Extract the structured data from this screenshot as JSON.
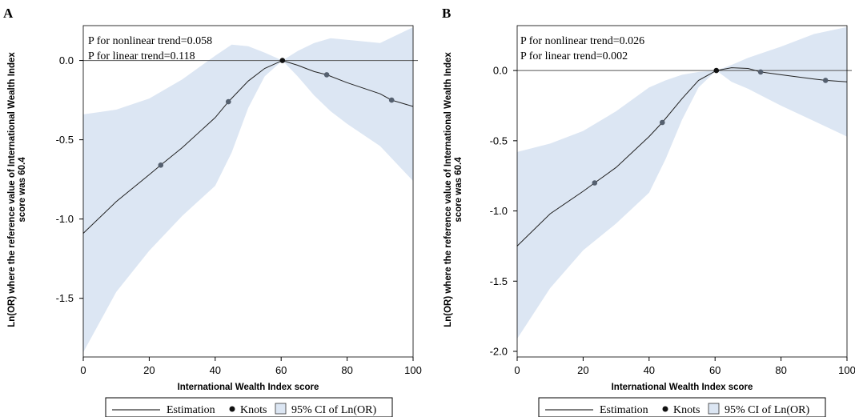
{
  "chart_data": [
    {
      "type": "line",
      "panel_label": "A",
      "xlabel": "International Wealth Index score",
      "ylabel_lines": [
        "Ln(OR) where the reference value of International Wealth Index",
        "score was 60.4"
      ],
      "xlim": [
        0,
        100
      ],
      "ylim": [
        -1.87,
        0.22
      ],
      "xticks": [
        0,
        20,
        40,
        60,
        80,
        100
      ],
      "xtick_labels": [
        "0",
        "20",
        "40",
        "60",
        "80",
        "100"
      ],
      "yticks": [
        0.0,
        -0.5,
        -1.0,
        -1.5
      ],
      "ytick_labels": [
        "0.0",
        "-0.5",
        "-1.0",
        "-1.5"
      ],
      "reference_line_y": 0,
      "annotations": [
        "P for nonlinear trend=0.058",
        "P for linear trend=0.118"
      ],
      "series": [
        {
          "name": "Estimation",
          "x": [
            0,
            10,
            20,
            23.5,
            30,
            40,
            44,
            50,
            55,
            60.4,
            65,
            70,
            73.8,
            80,
            90,
            93.5,
            100
          ],
          "values": [
            -1.09,
            -0.89,
            -0.72,
            -0.66,
            -0.55,
            -0.36,
            -0.26,
            -0.13,
            -0.05,
            0.0,
            -0.03,
            -0.07,
            -0.09,
            -0.14,
            -0.21,
            -0.25,
            -0.29
          ]
        },
        {
          "name": "Knots",
          "x": [
            23.5,
            44,
            60.4,
            73.8,
            93.5
          ],
          "values": [
            -0.66,
            -0.26,
            0.0,
            -0.09,
            -0.25
          ]
        },
        {
          "name": "95% CI of Ln(OR)",
          "x": [
            0,
            10,
            20,
            30,
            40,
            45,
            50,
            55,
            60.4,
            65,
            70,
            75,
            80,
            90,
            100
          ],
          "upper": [
            -0.34,
            -0.31,
            -0.24,
            -0.12,
            0.03,
            0.1,
            0.09,
            0.05,
            0.0,
            0.06,
            0.11,
            0.14,
            0.13,
            0.11,
            0.21
          ],
          "lower": [
            -1.84,
            -1.46,
            -1.2,
            -0.98,
            -0.79,
            -0.58,
            -0.3,
            -0.1,
            0.0,
            -0.1,
            -0.22,
            -0.32,
            -0.4,
            -0.54,
            -0.76
          ]
        }
      ]
    },
    {
      "type": "line",
      "panel_label": "B",
      "xlabel": "International Wealth Index score",
      "ylabel_lines": [
        "Ln(OR) where the reference value of International Wealth Index",
        "score was 60.4"
      ],
      "xlim": [
        0,
        100
      ],
      "ylim": [
        -2.04,
        0.32
      ],
      "xticks": [
        0,
        20,
        40,
        60,
        80,
        100
      ],
      "xtick_labels": [
        "0",
        "20",
        "40",
        "60",
        "80",
        "100"
      ],
      "yticks": [
        0.0,
        -0.5,
        -1.0,
        -1.5,
        -2.0
      ],
      "ytick_labels": [
        "0.0",
        "-0.5",
        "-1.0",
        "-1.5",
        "-2.0"
      ],
      "reference_line_y": 0,
      "annotations": [
        "P for nonlinear trend=0.026",
        "P for linear trend=0.002"
      ],
      "series": [
        {
          "name": "Estimation",
          "x": [
            0,
            10,
            20,
            23.5,
            30,
            40,
            44,
            50,
            55,
            60.4,
            65,
            70,
            73.8,
            80,
            90,
            93.5,
            100
          ],
          "values": [
            -1.25,
            -1.02,
            -0.86,
            -0.8,
            -0.69,
            -0.47,
            -0.37,
            -0.2,
            -0.07,
            0.0,
            0.02,
            0.015,
            -0.01,
            -0.03,
            -0.06,
            -0.07,
            -0.08
          ]
        },
        {
          "name": "Knots",
          "x": [
            23.5,
            44,
            60.4,
            73.8,
            93.5
          ],
          "values": [
            -0.8,
            -0.37,
            0.0,
            -0.01,
            -0.07
          ]
        },
        {
          "name": "95% CI of Ln(OR)",
          "x": [
            0,
            10,
            20,
            30,
            40,
            45,
            50,
            55,
            60.4,
            65,
            70,
            75,
            80,
            90,
            100
          ],
          "upper": [
            -0.58,
            -0.52,
            -0.43,
            -0.29,
            -0.12,
            -0.07,
            -0.03,
            -0.01,
            0.0,
            0.04,
            0.09,
            0.13,
            0.17,
            0.26,
            0.31
          ],
          "lower": [
            -1.91,
            -1.55,
            -1.28,
            -1.09,
            -0.87,
            -0.63,
            -0.35,
            -0.12,
            0.0,
            -0.08,
            -0.13,
            -0.19,
            -0.25,
            -0.36,
            -0.47
          ]
        }
      ]
    }
  ]
}
